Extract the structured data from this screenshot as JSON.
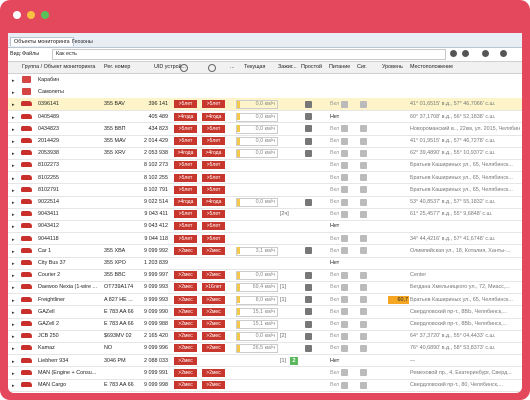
{
  "window": {
    "tabs": [
      "Объекты мониторинга",
      "Геозоны"
    ],
    "toolbar": {
      "view": "Вид:",
      "files": "Файлы",
      "filter": "Как есть"
    }
  },
  "table": {
    "headers": [
      "Группа / Объект мониторинга",
      "Рег. номер",
      "UID устрой...",
      "...",
      "Текущая",
      "Зажиг...",
      "Простой",
      "Питание",
      "Сиг.",
      "Уровень",
      "Местоположение"
    ],
    "groups": [
      "Карабин",
      "Самолеты"
    ],
    "rows": [
      [
        "0396141",
        "355 BAV",
        "396 141",
        ">5лет",
        ">5лет",
        "0,0 км/ч",
        null,
        null,
        "Вкл",
        null,
        "41° 01,6515' в.д., 57° 46,7066' с.ш."
      ],
      [
        "0405489",
        null,
        "405 489",
        ">4года",
        ">4года",
        "0,0 км/ч",
        null,
        null,
        "Нет",
        null,
        "60° 37,1708' в.д., 56° 52,1838' с.ш."
      ],
      [
        "0434823",
        "355 ВВП",
        "434 823",
        ">5лет",
        ">5лет",
        "0,0 км/ч",
        null,
        null,
        "Вкл",
        null,
        "Новороманский в.., 22км, ул. 2015, Челябинск..."
      ],
      [
        "2014429",
        "355 MAV",
        "2 014 429",
        ">5лет",
        ">5лет",
        "0,0 км/ч",
        null,
        null,
        "Вкл",
        null,
        "41° 01,9515' в.д., 57° 46,7278' с.ш."
      ],
      [
        "2053938",
        "355 XRV",
        "2 053 938",
        ">4года",
        ">4года",
        "0,0 км/ч",
        null,
        null,
        "Вкл",
        null,
        "62° 39,4890' в.д., 55° 10,9372' с.ш."
      ],
      [
        "8102273",
        null,
        "8 102 273",
        ">5лет",
        ">5лет",
        null,
        null,
        null,
        "Вкл",
        null,
        "Братьев Кашириных ул., 65, Челябинск..."
      ],
      [
        "8102255",
        null,
        "8 102 255",
        ">5лет",
        ">5лет",
        null,
        null,
        null,
        "Вкл",
        null,
        "Братьев Кашириных ул., 65, Челябинск..."
      ],
      [
        "8102791",
        null,
        "8 102 791",
        ">5лет",
        ">5лет",
        null,
        null,
        null,
        "Вкл",
        null,
        "Братьев Кашириных ул., 65, Челябинск..."
      ],
      [
        "9022514",
        null,
        "9 022 514",
        ">4года",
        ">4года",
        "0,0 км/ч",
        null,
        null,
        "Вкл",
        null,
        "53° 40,8537' в.д., 57° 55,1832' с.ш."
      ],
      [
        "9043411",
        null,
        "9 043 411",
        ">5лет",
        ">5лет",
        null,
        "[2ч]",
        null,
        "Вкл",
        null,
        "61° 25,4577' в.д., 55° 9,6848' с.ш."
      ],
      [
        "9043412",
        null,
        "9 043 412",
        ">5лет",
        ">5лет",
        null,
        null,
        null,
        "Нет",
        null,
        null
      ],
      [
        "9044118",
        null,
        "9 044 118",
        ">5лет",
        ">5лет",
        null,
        null,
        null,
        "Вкл",
        null,
        "34° 44,4216' в.д., 57° 41,6748' с.ш."
      ],
      [
        "Car 1",
        "355 XBA",
        "9 099 992",
        ">2мес",
        ">2мес",
        "3,1 км/ч",
        null,
        null,
        "Вкл",
        null,
        "Олимпийская ул., 18, Коталия, Ханты-..."
      ],
      [
        "City Bus 37",
        "355 XPO",
        "1 203 839",
        null,
        null,
        null,
        null,
        null,
        "Нет",
        null,
        null
      ],
      [
        "Courier 2",
        "355 BBC",
        "9 999 997",
        ">2мес",
        ">2мес",
        "0,0 км/ч",
        null,
        null,
        "Вкл",
        null,
        "Center"
      ],
      [
        "Daewoo Nexia (1-wire ...",
        "OT739A174",
        "9 099 993",
        ">2мес",
        ">16лет",
        "69,4 км/ч",
        "[1]",
        null,
        "Вкл",
        null,
        "Бегдана Хмельницкого ул., 72, Миасс,..."
      ],
      [
        "Freightliner",
        "A 827 НЕ ...",
        "9 999 993",
        ">2мес",
        ">2мес",
        "8,0 км/ч",
        "[1]",
        null,
        "Вкл",
        "60,7",
        "Братьев Кашириных ул., 65, Челябинск..."
      ],
      [
        "GAZelI",
        "E 783 AA 66",
        "9 099 990",
        ">2мес",
        ">2мес",
        "15,1 км/ч",
        null,
        null,
        "Вкл",
        null,
        "Свердловский пр-т., 8ВЬ, Челябинск,..."
      ],
      [
        "GAZell 2",
        "E 783 AA 66",
        "9 099 988",
        ">2мес",
        ">2мес",
        "15,1 км/ч",
        null,
        null,
        "Вкл",
        null,
        "Свердловский пр-т., 8ВЬ, Челябинск,..."
      ],
      [
        "JCB 250",
        "$693MV 02",
        "2 165 420",
        ">2мес",
        ">2мес",
        "0,0 км/ч",
        "[2]",
        null,
        "Вкл",
        null,
        "64° 37,3720' в.д., 55° 04,4433' с.ш."
      ],
      [
        "Kamaz",
        "NO",
        "9 099 996",
        ">2мес",
        ">2мес",
        "26,5 км/ч",
        null,
        null,
        "Вкл",
        null,
        "76° 40,6890' в.д., 58° 53,8373' с.ш."
      ],
      [
        "Liebherr 934",
        "3046 PM",
        "2 088 033",
        ">2мес",
        null,
        null,
        "[1]",
        "2",
        "Нет",
        null,
        "—"
      ],
      [
        "MAN (Engine + Consu...",
        null,
        "9 099 991",
        ">2мес",
        ">2мес",
        null,
        null,
        null,
        "Вкл",
        null,
        "Ремеховой пр., 4, Екатеринбург, Сверд..."
      ],
      [
        "MAN Cargo",
        "E 783 AA 66",
        "9 099 998",
        ">2мес",
        ">2мес",
        null,
        null,
        null,
        "Вкл",
        null,
        "Свердловский пр-т., 80, Челябинск,..."
      ]
    ]
  }
}
